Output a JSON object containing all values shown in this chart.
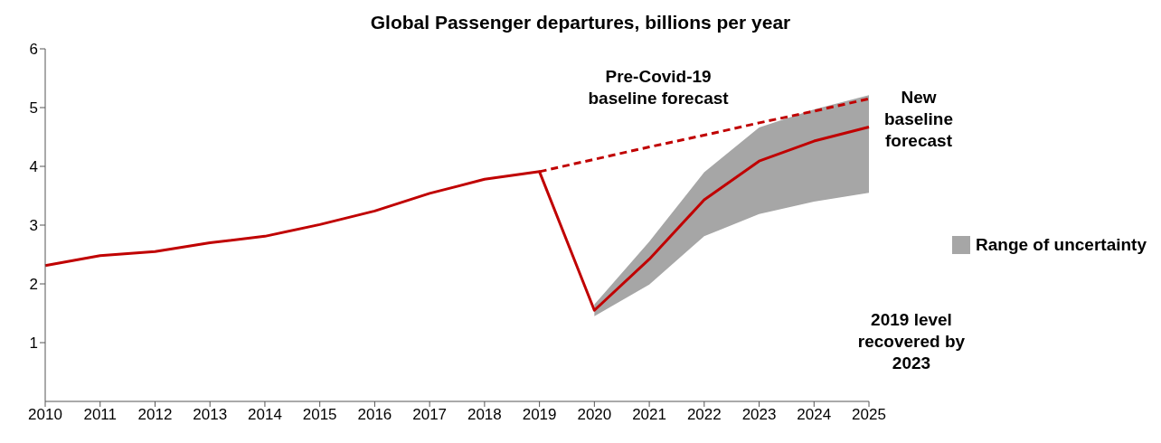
{
  "chart_data": {
    "type": "line",
    "title": "Global Passenger departures, billions per year",
    "categories": [
      "2010",
      "2011",
      "2012",
      "2013",
      "2014",
      "2015",
      "2016",
      "2017",
      "2018",
      "2019",
      "2020",
      "2021",
      "2022",
      "2023",
      "2024",
      "2025"
    ],
    "series": [
      {
        "name": "Pre-Covid-19 baseline forecast",
        "line_style": "dashed",
        "color": "#c00000",
        "values": [
          null,
          null,
          null,
          null,
          null,
          null,
          null,
          null,
          null,
          3.91,
          4.12,
          4.33,
          4.53,
          4.74,
          4.94,
          5.15
        ]
      },
      {
        "name": "New baseline forecast",
        "line_style": "solid",
        "color": "#c00000",
        "values": [
          2.31,
          2.48,
          2.55,
          2.7,
          2.81,
          3.01,
          3.24,
          3.54,
          3.78,
          3.91,
          1.55,
          2.42,
          3.43,
          4.09,
          4.43,
          4.67
        ],
        "lower": [
          null,
          null,
          null,
          null,
          null,
          null,
          null,
          null,
          null,
          null,
          1.45,
          1.99,
          2.81,
          3.19,
          3.4,
          3.55
        ],
        "upper": [
          null,
          null,
          null,
          null,
          null,
          null,
          null,
          null,
          null,
          null,
          1.65,
          2.72,
          3.9,
          4.66,
          4.97,
          5.21
        ]
      }
    ],
    "ylim": [
      0,
      6
    ],
    "yticks": [
      1,
      2,
      3,
      4,
      5,
      6
    ],
    "grid": false,
    "legend": "right",
    "legend_title": "Range of uncertainty",
    "marker": "none",
    "annotations": [
      "2019 level recovered by 2023"
    ]
  }
}
